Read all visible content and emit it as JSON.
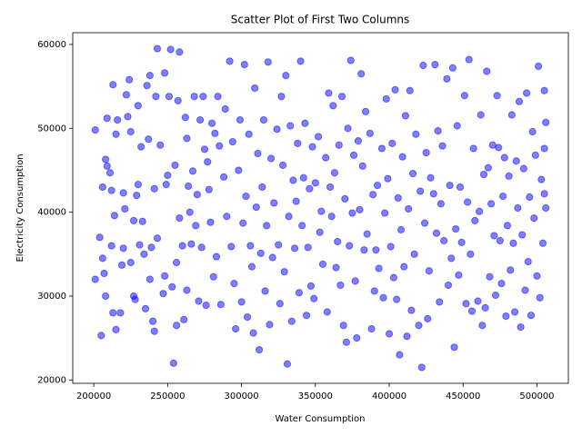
{
  "chart_data": {
    "type": "scatter",
    "title": "Scatter Plot of First Two Columns",
    "x_label": "Water Consumption",
    "y_label": "Electricity Consumption",
    "color": "#0000ff",
    "alpha": 0.5,
    "xlim": [
      185750,
      521250
    ],
    "ylim": [
      19600,
      61400
    ],
    "xticks": [
      200000,
      250000,
      300000,
      350000,
      400000,
      450000,
      500000
    ],
    "yticks": [
      20000,
      30000,
      40000,
      50000,
      60000
    ],
    "grid": false,
    "x": [
      201000,
      201000,
      204000,
      205000,
      206000,
      206000,
      207000,
      208000,
      208000,
      209000,
      209000,
      211000,
      212000,
      212000,
      213000,
      213000,
      214000,
      215000,
      215000,
      216000,
      218000,
      219000,
      220000,
      220000,
      221000,
      222000,
      223000,
      224000,
      225000,
      225000,
      227000,
      227000,
      228000,
      229000,
      230000,
      230000,
      231000,
      232000,
      233000,
      234000,
      235000,
      236000,
      237000,
      238000,
      238000,
      239000,
      240000,
      241000,
      241000,
      242000,
      243000,
      243000,
      245000,
      247000,
      248000,
      248000,
      249000,
      250000,
      251000,
      252000,
      253000,
      254000,
      255000,
      256000,
      256000,
      257000,
      258000,
      258000,
      260000,
      261000,
      262000,
      263000,
      263000,
      264000,
      265000,
      266000,
      267000,
      268000,
      269000,
      270000,
      271000,
      272000,
      273000,
      274000,
      275000,
      276000,
      277000,
      278000,
      279000,
      280000,
      281000,
      282000,
      283000,
      284000,
      285000,
      286000,
      288000,
      289000,
      290000,
      292000,
      293000,
      294000,
      295000,
      296000,
      298000,
      299000,
      300000,
      301000,
      302000,
      303000,
      304000,
      305000,
      306000,
      307000,
      308000,
      309000,
      310000,
      311000,
      312000,
      313000,
      314000,
      315000,
      316000,
      317000,
      318000,
      319000,
      320000,
      321000,
      322000,
      324000,
      325000,
      326000,
      327000,
      328000,
      329000,
      330000,
      331000,
      332000,
      333000,
      334000,
      335000,
      336000,
      337000,
      338000,
      339000,
      340000,
      341000,
      342000,
      343000,
      344000,
      345000,
      346000,
      347000,
      348000,
      349000,
      350000,
      352000,
      353000,
      354000,
      355000,
      357000,
      358000,
      359000,
      360000,
      361000,
      362000,
      363000,
      364000,
      365000,
      366000,
      367000,
      368000,
      369000,
      370000,
      371000,
      372000,
      373000,
      374000,
      375000,
      376000,
      377000,
      378000,
      379000,
      380000,
      381000,
      382000,
      383000,
      384000,
      385000,
      387000,
      388000,
      389000,
      390000,
      391000,
      392000,
      393000,
      395000,
      396000,
      397000,
      398000,
      399000,
      400000,
      401000,
      402000,
      403000,
      404000,
      405000,
      406000,
      407000,
      408000,
      409000,
      410000,
      411000,
      412000,
      413000,
      414000,
      415000,
      416000,
      417000,
      418000,
      420000,
      421000,
      422000,
      423000,
      424000,
      425000,
      426000,
      427000,
      428000,
      430000,
      431000,
      432000,
      433000,
      434000,
      435000,
      436000,
      437000,
      439000,
      440000,
      441000,
      442000,
      443000,
      444000,
      445000,
      446000,
      447000,
      448000,
      449000,
      451000,
      452000,
      453000,
      454000,
      455000,
      456000,
      457000,
      458000,
      460000,
      461000,
      462000,
      463000,
      464000,
      465000,
      466000,
      467000,
      468000,
      469000,
      470000,
      471000,
      472000,
      473000,
      474000,
      475000,
      476000,
      477000,
      478000,
      479000,
      480000,
      481000,
      482000,
      483000,
      484000,
      485000,
      486000,
      487000,
      488000,
      489000,
      490000,
      491000,
      492000,
      493000,
      494000,
      495000,
      496000,
      497000,
      498000,
      499000,
      500000,
      501000,
      502000,
      503000,
      504000,
      505000,
      506000,
      506000,
      505000,
      505000
    ],
    "values": [
      49800,
      32000,
      37000,
      25300,
      43000,
      34500,
      32700,
      30000,
      46300,
      45500,
      51200,
      44700,
      42600,
      36000,
      55200,
      28000,
      39600,
      49300,
      26000,
      51000,
      28000,
      33700,
      42300,
      35700,
      40400,
      54000,
      51400,
      55800,
      49600,
      34000,
      39000,
      30000,
      29600,
      42000,
      52700,
      43300,
      36100,
      47800,
      38900,
      35000,
      28500,
      55100,
      48700,
      56300,
      32000,
      35800,
      27000,
      42800,
      25800,
      53800,
      59500,
      36900,
      48000,
      30300,
      56600,
      32400,
      43300,
      44400,
      53800,
      59400,
      31100,
      22000,
      45600,
      34000,
      26500,
      53300,
      59100,
      39300,
      36000,
      27200,
      51300,
      48800,
      30700,
      43100,
      40000,
      36200,
      44900,
      53800,
      38400,
      42100,
      29400,
      51000,
      35800,
      53800,
      47500,
      28900,
      46000,
      42700,
      38800,
      50600,
      32300,
      49400,
      34700,
      53800,
      47900,
      29000,
      44200,
      52300,
      39500,
      58000,
      35900,
      48400,
      31500,
      26100,
      45000,
      51000,
      29300,
      38700,
      57600,
      41900,
      27500,
      49300,
      36000,
      33500,
      25600,
      54800,
      40600,
      47000,
      23600,
      35100,
      43000,
      51000,
      30600,
      38400,
      57900,
      26600,
      46400,
      34600,
      41100,
      49900,
      36100,
      29100,
      53800,
      45600,
      32900,
      56300,
      21900,
      39500,
      50300,
      27000,
      43800,
      35700,
      41300,
      48200,
      30400,
      58000,
      38400,
      44100,
      50600,
      27700,
      35800,
      42800,
      31200,
      47800,
      29700,
      43500,
      49000,
      37600,
      40100,
      33800,
      46500,
      28100,
      54200,
      43000,
      39500,
      52700,
      44700,
      33400,
      36500,
      48000,
      31300,
      53800,
      26500,
      41600,
      24500,
      50000,
      36000,
      58100,
      39900,
      46800,
      31800,
      25000,
      48500,
      40300,
      56500,
      45500,
      35500,
      52000,
      37400,
      49400,
      26100,
      42100,
      30600,
      35500,
      43200,
      33300,
      47600,
      29800,
      39900,
      53500,
      44000,
      25500,
      35900,
      48200,
      32200,
      54600,
      29600,
      41700,
      23000,
      37900,
      46600,
      33500,
      51500,
      25200,
      40400,
      54500,
      28300,
      44600,
      35000,
      49300,
      26500,
      42500,
      21500,
      57500,
      38700,
      47100,
      27300,
      33000,
      44100,
      42200,
      57600,
      37500,
      49700,
      29300,
      41000,
      47900,
      36600,
      55900,
      31300,
      43200,
      34500,
      57200,
      23900,
      38000,
      50300,
      32500,
      43000,
      36400,
      53900,
      29100,
      41200,
      58200,
      35000,
      28200,
      47600,
      39000,
      29400,
      40100,
      51600,
      26500,
      44500,
      28600,
      56800,
      45300,
      32300,
      41000,
      48000,
      37200,
      30100,
      53900,
      47700,
      36600,
      31500,
      41900,
      46500,
      27600,
      38400,
      44300,
      33100,
      51600,
      36300,
      28100,
      46100,
      40500,
      53200,
      26300,
      37300,
      45200,
      30700,
      54200,
      34100,
      41800,
      27700,
      49600,
      39300,
      46800,
      32400,
      57400,
      29800,
      43900,
      36300,
      54500,
      40500,
      50700,
      42200,
      47600
    ]
  }
}
